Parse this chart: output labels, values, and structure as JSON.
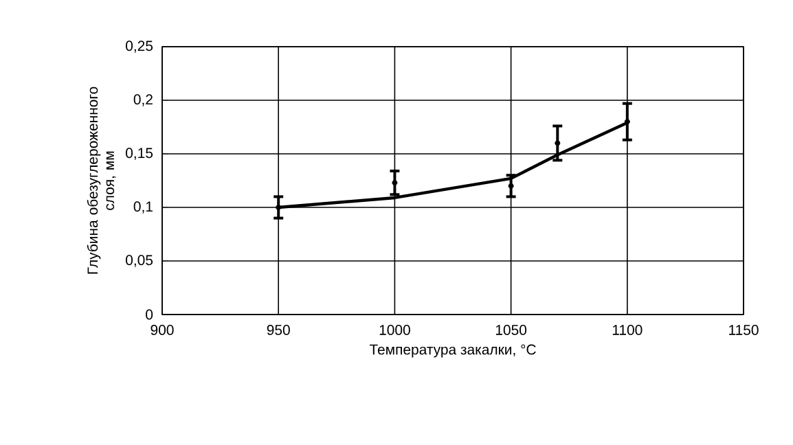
{
  "chart_data": {
    "type": "line",
    "xlabel": "Температура закалки, °C",
    "ylabel": "Глубина обезуглероженного слоя, мм",
    "xlim": [
      900,
      1150
    ],
    "xticks": [
      900,
      950,
      1000,
      1050,
      1100,
      1150
    ],
    "ylim": [
      0,
      0.25
    ],
    "yticks": [
      {
        "value": 0,
        "label": "0"
      },
      {
        "value": 0.05,
        "label": "0,05"
      },
      {
        "value": 0.1,
        "label": "0,1"
      },
      {
        "value": 0.15,
        "label": "0,15"
      },
      {
        "value": 0.2,
        "label": "0,2"
      },
      {
        "value": 0.25,
        "label": "0,25"
      }
    ],
    "grid": true,
    "series": [
      {
        "color": "#000000",
        "x": [
          950,
          1000,
          1050,
          1070,
          1100
        ],
        "values": [
          0.1,
          0.109,
          0.127,
          0.149,
          0.179
        ]
      },
      {
        "type": "scatter",
        "color": "#000000",
        "marker": "circle",
        "x": [
          950,
          1000,
          1050,
          1070,
          1100
        ],
        "values": [
          0.1,
          0.123,
          0.12,
          0.16,
          0.18
        ],
        "errors": [
          0.01,
          0.011,
          0.01,
          0.016,
          0.017
        ]
      }
    ]
  }
}
